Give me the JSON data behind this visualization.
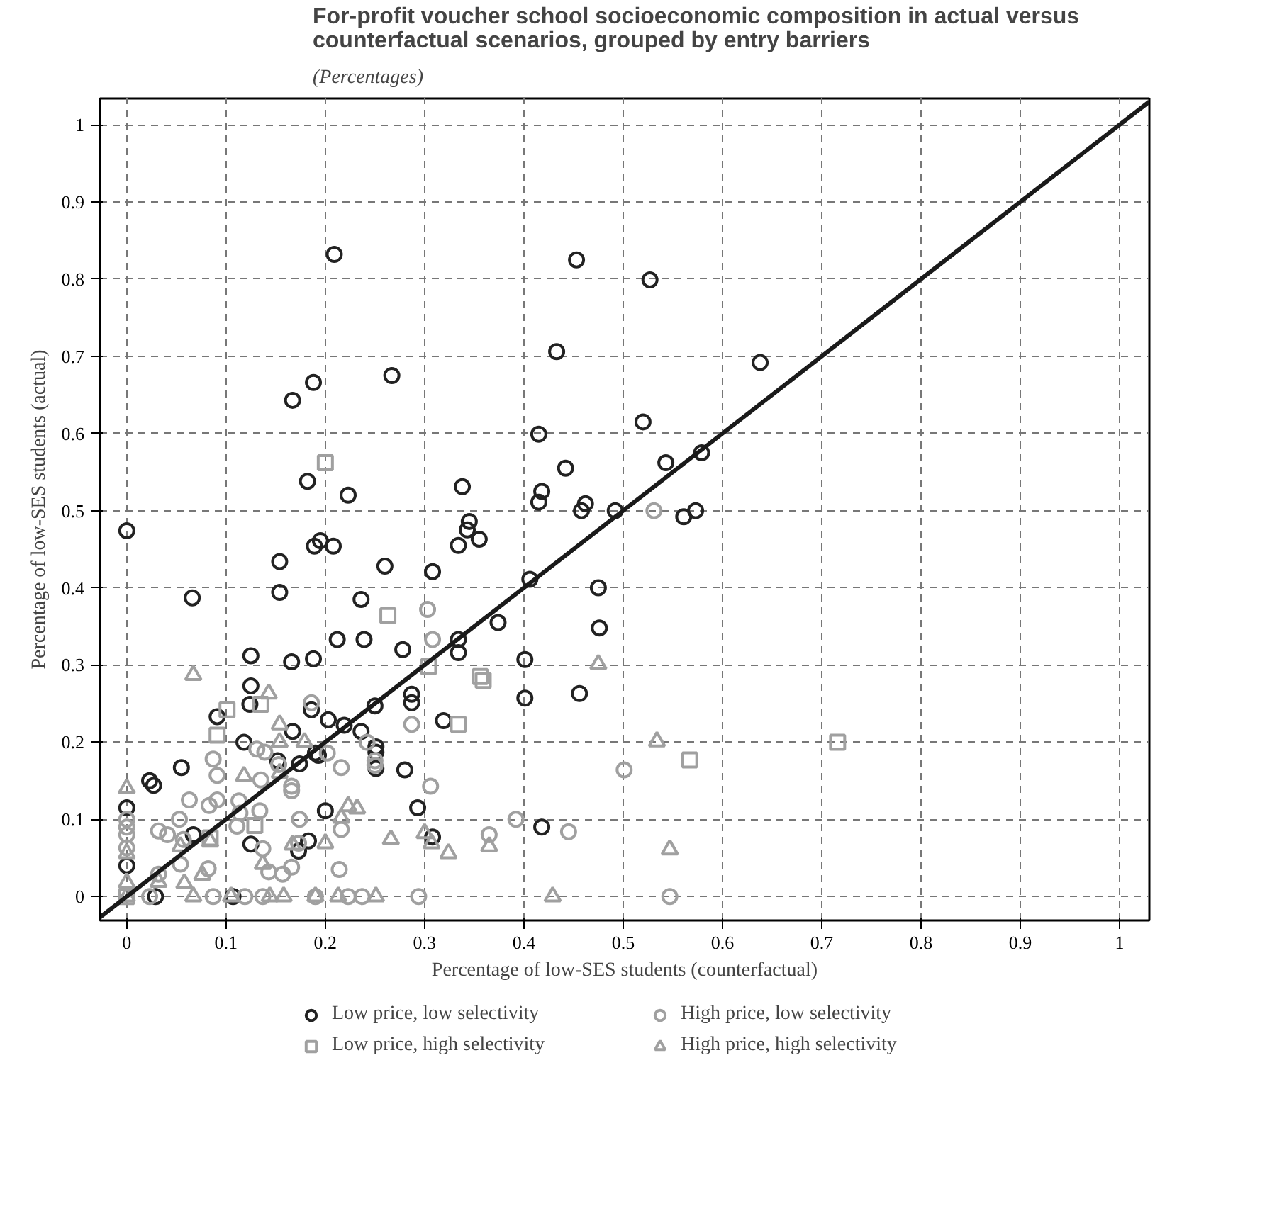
{
  "chart_data": {
    "type": "scatter",
    "title": "For-profit voucher school socioeconomic composition in actual versus counterfactual scenarios, grouped by entry barriers",
    "subtitle": "(Percentages)",
    "xlabel": "Percentage of low-SES students (counterfactual)",
    "ylabel": "Percentage of low-SES students (actual)",
    "xlim": [
      -0.027,
      1.03
    ],
    "ylim": [
      -0.031,
      1.034
    ],
    "xticks": [
      0,
      0.1,
      0.2,
      0.3,
      0.4,
      0.5,
      0.6,
      0.7,
      0.8,
      0.9,
      1
    ],
    "yticks": [
      0,
      0.1,
      0.2,
      0.3,
      0.4,
      0.5,
      0.6,
      0.7,
      0.8,
      0.9,
      1
    ],
    "grid": true,
    "legend": "bottom",
    "series": [
      {
        "name": "Low price, low selectivity",
        "color": "#222222",
        "marker": "circle",
        "x": [
          0.209,
          0.453,
          0.527,
          0.433,
          0.167,
          0.188,
          0.267,
          0.415,
          0.52,
          0.442,
          0.182,
          0.338,
          0.418,
          0.223,
          0.638,
          0.543,
          0.579,
          0.492,
          0.561,
          0.573,
          0.415,
          0.458,
          0.462,
          0,
          0.154,
          0.189,
          0.195,
          0.208,
          0.334,
          0.345,
          0.343,
          0.355,
          0.26,
          0.308,
          0.154,
          0.066,
          0.236,
          0.406,
          0.475,
          0.476,
          0.374,
          0.212,
          0.239,
          0.334,
          0.334,
          0.278,
          0.125,
          0.166,
          0.188,
          0.401,
          0.401,
          0.456,
          0.125,
          0.124,
          0.186,
          0.287,
          0.287,
          0.25,
          0.091,
          0.203,
          0.219,
          0.319,
          0.167,
          0.236,
          0.118,
          0.251,
          0.251,
          0.251,
          0.28,
          0.19,
          0.193,
          0.174,
          0.152,
          0.055,
          0.023,
          0.027,
          0.2,
          0.293,
          0,
          0.418,
          0.067,
          0.125,
          0.183,
          0.173,
          0.308,
          0,
          0.029,
          0.107
        ],
        "values": [
          0.832,
          0.825,
          0.799,
          0.706,
          0.643,
          0.666,
          0.675,
          0.599,
          0.615,
          0.555,
          0.538,
          0.531,
          0.525,
          0.52,
          0.692,
          0.562,
          0.575,
          0.5,
          0.492,
          0.5,
          0.511,
          0.5,
          0.509,
          0.474,
          0.434,
          0.454,
          0.461,
          0.454,
          0.455,
          0.486,
          0.475,
          0.463,
          0.428,
          0.421,
          0.394,
          0.387,
          0.385,
          0.411,
          0.4,
          0.348,
          0.355,
          0.333,
          0.333,
          0.333,
          0.316,
          0.32,
          0.312,
          0.304,
          0.308,
          0.307,
          0.257,
          0.263,
          0.273,
          0.249,
          0.242,
          0.262,
          0.251,
          0.247,
          0.233,
          0.229,
          0.222,
          0.228,
          0.214,
          0.214,
          0.2,
          0.194,
          0.187,
          0.166,
          0.164,
          0.186,
          0.183,
          0.172,
          0.176,
          0.167,
          0.15,
          0.144,
          0.111,
          0.115,
          0.115,
          0.09,
          0.08,
          0.068,
          0.072,
          0.059,
          0.077,
          0.04,
          0,
          0
        ]
      },
      {
        "name": "High price, low selectivity",
        "color": "#a0a0a0",
        "marker": "circle",
        "x": [
          0.531,
          0.501,
          0.547,
          0.303,
          0.308,
          0.287,
          0.186,
          0.242,
          0.25,
          0.25,
          0.216,
          0.202,
          0.306,
          0.087,
          0.091,
          0.063,
          0.083,
          0.091,
          0.113,
          0.114,
          0.134,
          0.131,
          0.139,
          0.135,
          0.153,
          0.166,
          0.166,
          0.053,
          0.174,
          0.216,
          0.392,
          0.365,
          0.445,
          0,
          0,
          0,
          0,
          0.032,
          0.041,
          0.057,
          0.111,
          0.137,
          0.143,
          0.157,
          0.166,
          0.054,
          0.032,
          0.082,
          0.214,
          0.173,
          0.087,
          0.119,
          0.137,
          0.19,
          0.223,
          0.237,
          0.294,
          0.023
        ],
        "values": [
          0.5,
          0.164,
          0,
          0.372,
          0.333,
          0.223,
          0.251,
          0.2,
          0.176,
          0.17,
          0.167,
          0.186,
          0.143,
          0.178,
          0.157,
          0.125,
          0.118,
          0.125,
          0.124,
          0.108,
          0.111,
          0.191,
          0.187,
          0.151,
          0.171,
          0.137,
          0.143,
          0.1,
          0.1,
          0.087,
          0.1,
          0.08,
          0.084,
          0.1,
          0.09,
          0.08,
          0.063,
          0.085,
          0.08,
          0.074,
          0.091,
          0.062,
          0.032,
          0.029,
          0.038,
          0.042,
          0.029,
          0.036,
          0.035,
          0.069,
          0,
          0,
          0,
          0,
          0,
          0,
          0,
          0
        ]
      },
      {
        "name": "Low price, high selectivity",
        "color": "#a0a0a0",
        "marker": "square",
        "x": [
          0.2,
          0.263,
          0.304,
          0.356,
          0.359,
          0.334,
          0.101,
          0.091,
          0.135,
          0.129,
          0.084,
          0,
          0.567,
          0.716
        ],
        "values": [
          0.562,
          0.364,
          0.298,
          0.285,
          0.28,
          0.223,
          0.242,
          0.209,
          0.249,
          0.092,
          0.076,
          0,
          0.177,
          0.2
        ]
      },
      {
        "name": "High price, high selectivity",
        "color": "#a0a0a0",
        "marker": "triangle",
        "x": [
          0.534,
          0.547,
          0.475,
          0.429,
          0.067,
          0.143,
          0.154,
          0.154,
          0.179,
          0.118,
          0.154,
          0.223,
          0.232,
          0.216,
          0,
          0,
          0,
          0.2,
          0.167,
          0.266,
          0.3,
          0.307,
          0.324,
          0.365,
          0.054,
          0.084,
          0.137,
          0.076,
          0.058,
          0.032,
          0.067,
          0.105,
          0.144,
          0.158,
          0.19,
          0.213,
          0.251,
          0
        ],
        "values": [
          0.201,
          0.061,
          0.301,
          0,
          0.287,
          0.263,
          0.223,
          0.2,
          0.2,
          0.156,
          0.16,
          0.117,
          0.114,
          0.102,
          0.14,
          0.056,
          0.018,
          0.069,
          0.067,
          0.074,
          0.082,
          0.069,
          0.056,
          0.065,
          0.065,
          0.071,
          0.042,
          0.028,
          0.017,
          0.019,
          0,
          0,
          0,
          0,
          0,
          0,
          0,
          0
        ]
      },
      {
        "type": "line",
        "color": "#1a1a1a",
        "line_style": "solid",
        "x": [
          -0.027,
          1.03
        ],
        "values": [
          -0.027,
          1.03
        ]
      }
    ]
  }
}
